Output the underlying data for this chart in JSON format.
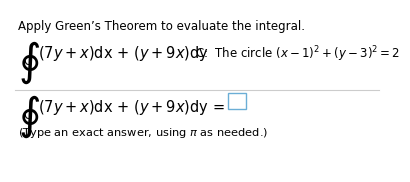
{
  "background_color": "#ffffff",
  "top_instruction": "Apply Green’s Theorem to evaluate the integral.",
  "integral_text": "$(7y + x)$dx + $(y + 9x)$dy",
  "circle_condition_prefix": "C:  The circle $(x - 1)^2 + (y - 3)^2 = 2$",
  "bottom_note": "(Type an exact answer, using $\\pi$ as needed.)",
  "font_size_small": 8.5,
  "font_size_integral": 10.5,
  "font_size_note": 8.2,
  "text_color": "#000000",
  "line_color": "#cccccc",
  "box_color": "#6baed6"
}
